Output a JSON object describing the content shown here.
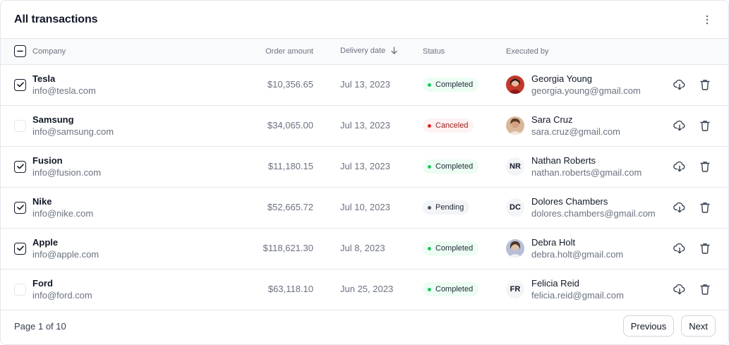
{
  "header": {
    "title": "All transactions",
    "menu_icon": "more-vertical-icon"
  },
  "table": {
    "columns": {
      "company": "Company",
      "amount": "Order amount",
      "date": "Delivery date",
      "status": "Status",
      "executed_by": "Executed by"
    },
    "sort": {
      "column": "date",
      "direction": "descending",
      "icon": "arrow-down-icon"
    },
    "header_checkbox": "indeterminate",
    "rows": [
      {
        "checked": true,
        "company": "Tesla",
        "email": "info@tesla.com",
        "amount": "$10,356.65",
        "date": "Jul 13, 2023",
        "status": "Completed",
        "status_kind": "completed",
        "exec_name": "Georgia Young",
        "exec_email": "georgia.young@gmail.com",
        "avatar_type": "photo",
        "initials": ""
      },
      {
        "checked": false,
        "company": "Samsung",
        "email": "info@samsung.com",
        "amount": "$34,065.00",
        "date": "Jul 13, 2023",
        "status": "Canceled",
        "status_kind": "canceled",
        "exec_name": "Sara Cruz",
        "exec_email": "sara.cruz@gmail.com",
        "avatar_type": "photo",
        "initials": ""
      },
      {
        "checked": true,
        "company": "Fusion",
        "email": "info@fusion.com",
        "amount": "$11,180.15",
        "date": "Jul 13, 2023",
        "status": "Completed",
        "status_kind": "completed",
        "exec_name": "Nathan Roberts",
        "exec_email": "nathan.roberts@gmail.com",
        "avatar_type": "initials",
        "initials": "NR"
      },
      {
        "checked": true,
        "company": "Nike",
        "email": "info@nike.com",
        "amount": "$52,665.72",
        "date": "Jul 10, 2023",
        "status": "Pending",
        "status_kind": "pending",
        "exec_name": "Dolores Chambers",
        "exec_email": "dolores.chambers@gmail.com",
        "avatar_type": "initials",
        "initials": "DC"
      },
      {
        "checked": true,
        "company": "Apple",
        "email": "info@apple.com",
        "amount": "$118,621.30",
        "date": "Jul 8, 2023",
        "status": "Completed",
        "status_kind": "completed",
        "exec_name": "Debra Holt",
        "exec_email": "debra.holt@gmail.com",
        "avatar_type": "photo",
        "initials": ""
      },
      {
        "checked": false,
        "company": "Ford",
        "email": "info@ford.com",
        "amount": "$63,118.10",
        "date": "Jun 25, 2023",
        "status": "Completed",
        "status_kind": "completed",
        "exec_name": "Felicia Reid",
        "exec_email": "felicia.reid@gmail.com",
        "avatar_type": "initials",
        "initials": "FR"
      }
    ],
    "row_actions": [
      "download-cloud-icon",
      "trash-icon"
    ]
  },
  "footer": {
    "page_info": "Page 1 of 10",
    "previous_label": "Previous",
    "next_label": "Next"
  },
  "colors": {
    "completed": "#22c55e",
    "canceled": "#dc2626",
    "pending": "#4b5563",
    "border": "#e5e7eb"
  }
}
